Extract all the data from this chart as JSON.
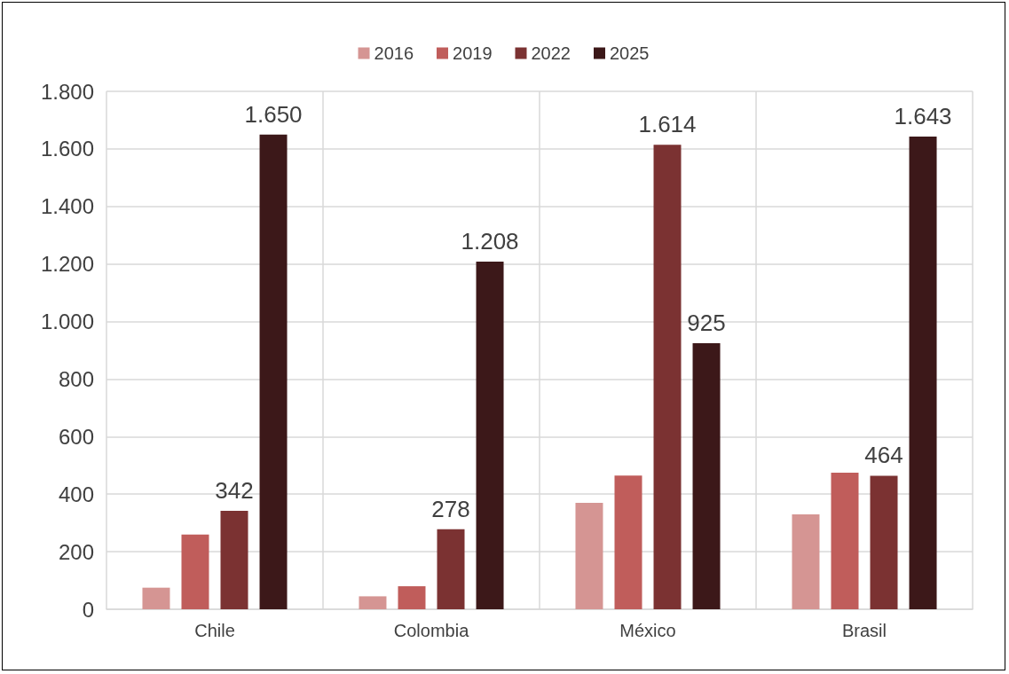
{
  "chart_data": {
    "type": "bar",
    "categories": [
      "Chile",
      "Colombia",
      "México",
      "Brasil"
    ],
    "series": [
      {
        "name": "2016",
        "color": "#d59593",
        "values": [
          75,
          45,
          370,
          330
        ]
      },
      {
        "name": "2019",
        "color": "#c05d5b",
        "values": [
          260,
          80,
          465,
          475
        ]
      },
      {
        "name": "2022",
        "color": "#7b3232",
        "values": [
          342,
          278,
          1614,
          464
        ],
        "value_labels": [
          "342",
          "278",
          "1.614",
          "464"
        ]
      },
      {
        "name": "2025",
        "color": "#3c1819",
        "values": [
          1650,
          1208,
          925,
          1643
        ],
        "value_labels": [
          "1.650",
          "1.208",
          "925",
          "1.643"
        ]
      }
    ],
    "ylim": [
      0,
      1800
    ],
    "yticks": [
      0,
      200,
      400,
      600,
      800,
      {
        "value": 1000,
        "label": "1.000"
      },
      {
        "value": 1200,
        "label": "1.200"
      },
      {
        "value": 1400,
        "label": "1.400"
      },
      {
        "value": 1600,
        "label": "1.600"
      },
      {
        "value": 1800,
        "label": "1.800"
      }
    ],
    "grid": true,
    "legend": "top"
  }
}
